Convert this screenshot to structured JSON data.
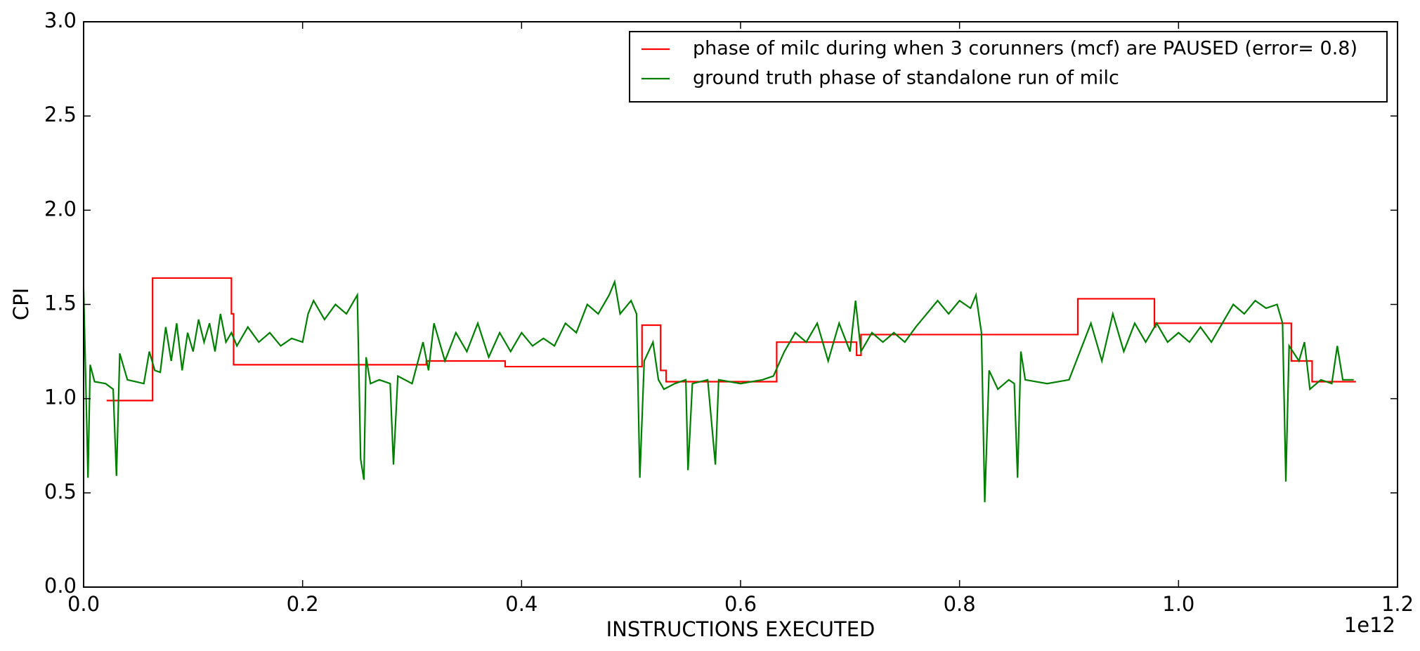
{
  "chart_data": {
    "type": "line",
    "xlabel": "INSTRUCTIONS EXECUTED",
    "ylabel": "CPI",
    "x_offset_label": "1e12",
    "xlim": [
      0,
      1.2
    ],
    "ylim": [
      0,
      3
    ],
    "xticks": [
      {
        "value": 0,
        "label": "0.0"
      },
      0.2,
      0.4,
      0.6,
      0.8,
      {
        "value": 1,
        "label": "1.0"
      },
      1.2
    ],
    "yticks": [
      {
        "value": 0,
        "label": "0.0"
      },
      0.5,
      {
        "value": 1,
        "label": "1.0"
      },
      1.5,
      {
        "value": 2,
        "label": "2.0"
      },
      2.5,
      {
        "value": 3,
        "label": "3.0"
      }
    ],
    "legend_position": "upper right",
    "grid": false,
    "series": [
      {
        "name": "phase of milc during when 3 corunners (mcf) are PAUSED (error= 0.8)",
        "color": "#ff0000",
        "x": [
          0.021,
          0.063,
          0.063,
          0.135,
          0.135,
          0.137,
          0.137,
          0.313,
          0.313,
          0.385,
          0.385,
          0.51,
          0.51,
          0.527,
          0.527,
          0.532,
          0.532,
          0.633,
          0.633,
          0.706,
          0.706,
          0.71,
          0.71,
          0.908,
          0.908,
          0.978,
          0.978,
          0.979,
          0.979,
          1.103,
          1.103,
          1.122,
          1.122,
          1.162
        ],
        "values": [
          0.99,
          0.99,
          1.64,
          1.64,
          1.45,
          1.45,
          1.18,
          1.18,
          1.2,
          1.2,
          1.17,
          1.17,
          1.39,
          1.39,
          1.15,
          1.15,
          1.09,
          1.09,
          1.3,
          1.3,
          1.23,
          1.23,
          1.34,
          1.34,
          1.53,
          1.53,
          1.38,
          1.38,
          1.4,
          1.4,
          1.2,
          1.2,
          1.09,
          1.09
        ]
      },
      {
        "name": "ground truth phase of standalone run of milc",
        "color": "#008000",
        "x": [
          0,
          0.004,
          0.006,
          0.01,
          0.02,
          0.027,
          0.03,
          0.033,
          0.04,
          0.055,
          0.06,
          0.065,
          0.07,
          0.075,
          0.08,
          0.085,
          0.09,
          0.095,
          0.1,
          0.105,
          0.11,
          0.115,
          0.12,
          0.125,
          0.13,
          0.135,
          0.14,
          0.15,
          0.16,
          0.17,
          0.18,
          0.19,
          0.2,
          0.205,
          0.21,
          0.22,
          0.23,
          0.24,
          0.25,
          0.253,
          0.256,
          0.258,
          0.262,
          0.27,
          0.28,
          0.283,
          0.287,
          0.3,
          0.31,
          0.315,
          0.32,
          0.33,
          0.34,
          0.35,
          0.36,
          0.37,
          0.38,
          0.39,
          0.4,
          0.41,
          0.42,
          0.43,
          0.44,
          0.45,
          0.46,
          0.47,
          0.48,
          0.485,
          0.49,
          0.5,
          0.505,
          0.508,
          0.512,
          0.52,
          0.525,
          0.53,
          0.54,
          0.55,
          0.552,
          0.556,
          0.57,
          0.577,
          0.58,
          0.6,
          0.62,
          0.63,
          0.64,
          0.65,
          0.66,
          0.67,
          0.68,
          0.69,
          0.7,
          0.705,
          0.71,
          0.72,
          0.73,
          0.74,
          0.75,
          0.76,
          0.77,
          0.78,
          0.79,
          0.8,
          0.81,
          0.815,
          0.82,
          0.823,
          0.827,
          0.835,
          0.845,
          0.85,
          0.853,
          0.856,
          0.86,
          0.88,
          0.9,
          0.91,
          0.92,
          0.93,
          0.94,
          0.95,
          0.96,
          0.97,
          0.98,
          0.99,
          1,
          1.01,
          1.02,
          1.03,
          1.04,
          1.05,
          1.06,
          1.07,
          1.08,
          1.09,
          1.095,
          1.098,
          1.101,
          1.11,
          1.115,
          1.12,
          1.13,
          1.14,
          1.145,
          1.15,
          1.16
        ],
        "values": [
          1.58,
          0.58,
          1.18,
          1.09,
          1.08,
          1.05,
          0.59,
          1.24,
          1.1,
          1.08,
          1.25,
          1.15,
          1.14,
          1.38,
          1.2,
          1.4,
          1.15,
          1.35,
          1.25,
          1.42,
          1.3,
          1.4,
          1.25,
          1.45,
          1.3,
          1.35,
          1.28,
          1.38,
          1.3,
          1.35,
          1.28,
          1.32,
          1.3,
          1.45,
          1.52,
          1.42,
          1.5,
          1.45,
          1.55,
          0.68,
          0.57,
          1.22,
          1.08,
          1.1,
          1.08,
          0.65,
          1.12,
          1.08,
          1.3,
          1.15,
          1.4,
          1.2,
          1.35,
          1.25,
          1.4,
          1.22,
          1.35,
          1.25,
          1.35,
          1.28,
          1.32,
          1.28,
          1.4,
          1.35,
          1.5,
          1.45,
          1.55,
          1.62,
          1.45,
          1.52,
          1.45,
          0.58,
          1.2,
          1.3,
          1.1,
          1.05,
          1.08,
          1.1,
          0.62,
          1.08,
          1.1,
          0.65,
          1.1,
          1.08,
          1.1,
          1.12,
          1.25,
          1.35,
          1.3,
          1.4,
          1.2,
          1.4,
          1.25,
          1.52,
          1.25,
          1.35,
          1.3,
          1.35,
          1.3,
          1.38,
          1.45,
          1.52,
          1.45,
          1.52,
          1.48,
          1.55,
          1.35,
          0.45,
          1.15,
          1.05,
          1.1,
          1.08,
          0.58,
          1.25,
          1.1,
          1.08,
          1.1,
          1.25,
          1.4,
          1.2,
          1.45,
          1.25,
          1.4,
          1.3,
          1.4,
          1.3,
          1.35,
          1.3,
          1.38,
          1.3,
          1.4,
          1.5,
          1.45,
          1.52,
          1.48,
          1.5,
          1.4,
          0.56,
          1.28,
          1.2,
          1.3,
          1.05,
          1.1,
          1.08,
          1.28,
          1.1,
          1.1
        ]
      }
    ]
  }
}
